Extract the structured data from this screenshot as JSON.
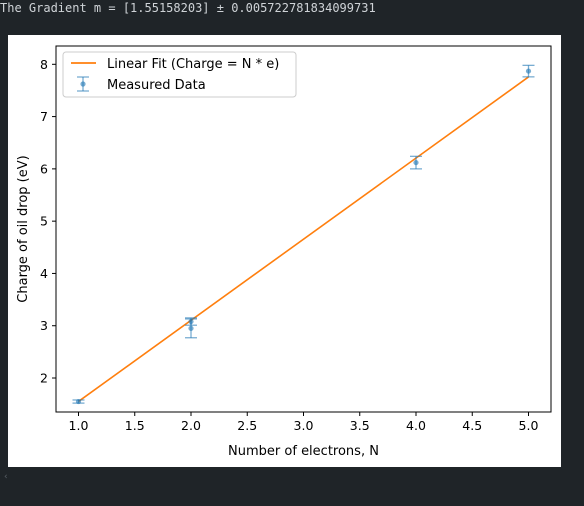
{
  "console": {
    "output_line": "The Gradient m = [1.55158203] ± 0.005722781834099731"
  },
  "chart_data": {
    "type": "line",
    "xlabel": "Number of electrons, N",
    "ylabel": "Charge of oil drop (eV)",
    "xlim": [
      0.8,
      5.2
    ],
    "ylim": [
      1.35,
      8.35
    ],
    "xticks": [
      "1.0",
      "1.5",
      "2.0",
      "2.5",
      "3.0",
      "3.5",
      "4.0",
      "4.5",
      "5.0"
    ],
    "yticks": [
      "2",
      "3",
      "4",
      "5",
      "6",
      "7",
      "8"
    ],
    "grid": false,
    "legend_position": "upper-left",
    "series": [
      {
        "name": "Linear Fit (Charge = N * e)",
        "kind": "line",
        "color": "#ff7f0e",
        "x": [
          1,
          5
        ],
        "y": [
          1.552,
          7.758
        ]
      },
      {
        "name": "Measured Data",
        "kind": "errorbar",
        "color": "#1f77b4",
        "points": [
          {
            "x": 1,
            "y": 1.55,
            "err": 0.03
          },
          {
            "x": 2,
            "y": 3.08,
            "err": 0.07
          },
          {
            "x": 2,
            "y": 2.95,
            "err": 0.18
          },
          {
            "x": 4,
            "y": 6.12,
            "err": 0.12
          },
          {
            "x": 5,
            "y": 7.87,
            "err": 0.11
          }
        ]
      }
    ]
  }
}
